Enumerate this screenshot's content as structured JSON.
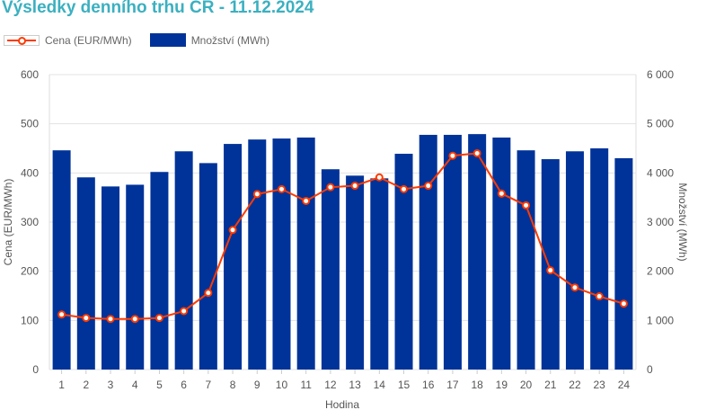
{
  "chart_data": {
    "type": "bar+line",
    "title": "Výsledky denního trhu ČR - 11.12.2024",
    "xlabel": "Hodina",
    "ylabel_left": "Cena (EUR/MWh)",
    "ylabel_right": "Množství (MWh)",
    "categories": [
      "1",
      "2",
      "3",
      "4",
      "5",
      "6",
      "7",
      "8",
      "9",
      "10",
      "11",
      "12",
      "13",
      "14",
      "15",
      "16",
      "17",
      "18",
      "19",
      "20",
      "21",
      "22",
      "23",
      "24"
    ],
    "series": [
      {
        "name": "Cena (EUR/MWh)",
        "type": "line",
        "axis": "left",
        "color": "#ff3a00",
        "values": [
          112,
          105,
          103,
          103,
          105,
          119,
          156,
          284,
          357,
          367,
          343,
          371,
          374,
          391,
          367,
          374,
          435,
          440,
          358,
          334,
          202,
          167,
          149,
          134
        ]
      },
      {
        "name": "Množství (MWh)",
        "type": "bar",
        "axis": "right",
        "color": "#003399",
        "values": [
          4460,
          3910,
          3725,
          3760,
          4020,
          4440,
          4200,
          4590,
          4680,
          4700,
          4720,
          4075,
          3945,
          3890,
          4390,
          4775,
          4775,
          4790,
          4720,
          4460,
          4280,
          4440,
          4500,
          4300
        ]
      }
    ],
    "ylim_left": [
      0,
      600
    ],
    "ylim_right": [
      0,
      6000
    ],
    "yticks_left": [
      "0",
      "100",
      "200",
      "300",
      "400",
      "500",
      "600"
    ],
    "yticks_right": [
      "0",
      "1 000",
      "2 000",
      "3 000",
      "4 000",
      "5 000",
      "6 000"
    ],
    "grid": true,
    "legend_position": "top-left"
  }
}
